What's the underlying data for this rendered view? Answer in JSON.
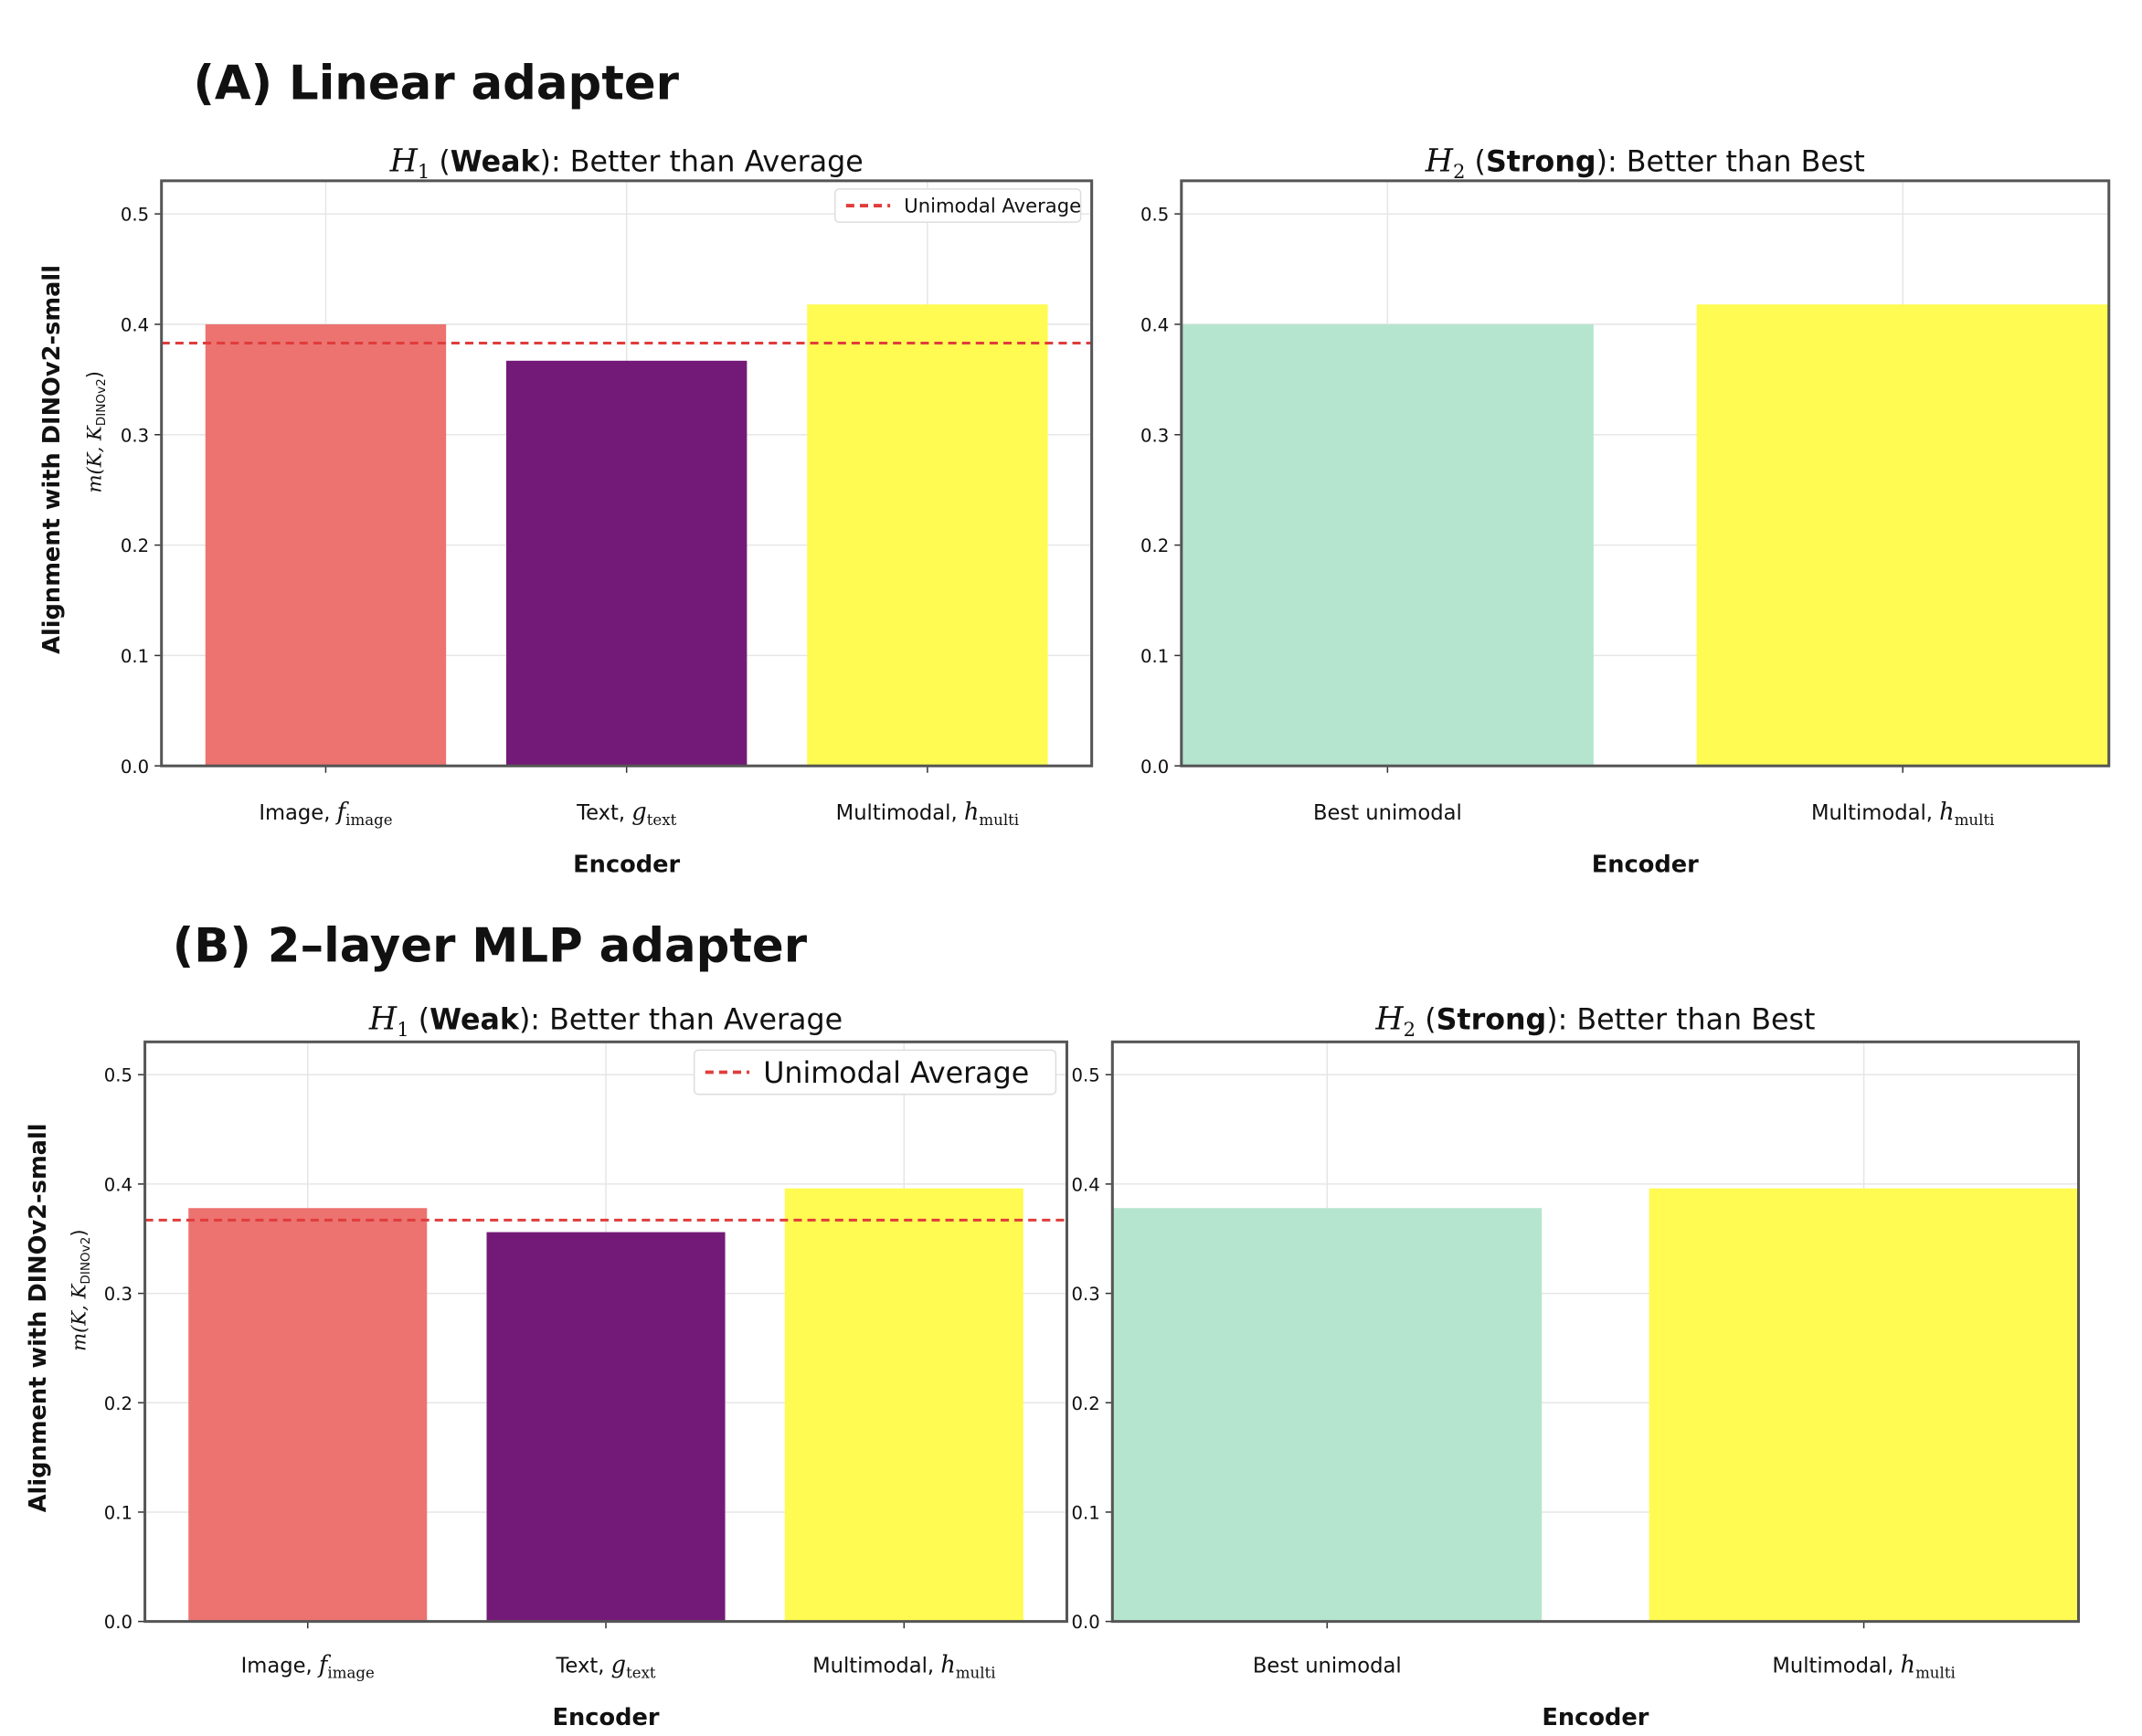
{
  "colors": {
    "image": "#ec7370",
    "text": "#731a78",
    "multi": "#fffb52",
    "best": "#b6e5cf",
    "avg": "#e03c3c",
    "grid": "#e6e6e6",
    "frame": "#555555"
  },
  "chart_data": [
    {
      "section_title": "(A) Linear adapter",
      "panels": [
        {
          "type": "bar",
          "title_math": "H",
          "title_sub": "1",
          "title_bold": "Weak",
          "title_rest": "): Better than Average",
          "categories": [
            {
              "label": "Image, ",
              "math": "f",
              "sub": "image"
            },
            {
              "label": "Text, ",
              "math": "g",
              "sub": "text"
            },
            {
              "label": "Multimodal, ",
              "math": "h",
              "sub": "multi"
            }
          ],
          "values": [
            0.4,
            0.367,
            0.418
          ],
          "bar_colors": [
            "image",
            "text",
            "multi"
          ],
          "hline": {
            "value": 0.383,
            "label": "Unimodal Average"
          },
          "legend": "top-right",
          "xlabel": "Encoder",
          "ylabel": "Alignment with DINOv2-small",
          "ylabel2": "m(K, K",
          "ylabel2_sub": "DINOv2",
          "ylim": [
            0,
            0.53
          ],
          "yticks": [
            "0.0",
            "0.1",
            "0.2",
            "0.3",
            "0.4",
            "0.5"
          ],
          "grid": true
        },
        {
          "type": "bar",
          "title_math": "H",
          "title_sub": "2",
          "title_bold": "Strong",
          "title_rest": "): Better than Best",
          "categories": [
            {
              "label": "Best unimodal"
            },
            {
              "label": "Multimodal, ",
              "math": "h",
              "sub": "multi"
            }
          ],
          "values": [
            0.4,
            0.418
          ],
          "bar_colors": [
            "best",
            "multi"
          ],
          "xlabel": "Encoder",
          "ylim": [
            0,
            0.53
          ],
          "yticks": [
            "0.0",
            "0.1",
            "0.2",
            "0.3",
            "0.4",
            "0.5"
          ],
          "grid": true
        }
      ]
    },
    {
      "section_title": "(B) 2–layer MLP adapter",
      "panels": [
        {
          "type": "bar",
          "title_math": "H",
          "title_sub": "1",
          "title_bold": "Weak",
          "title_rest": "): Better than Average",
          "categories": [
            {
              "label": "Image, ",
              "math": "f",
              "sub": "image"
            },
            {
              "label": "Text, ",
              "math": "g",
              "sub": "text"
            },
            {
              "label": "Multimodal, ",
              "math": "h",
              "sub": "multi"
            }
          ],
          "values": [
            0.378,
            0.356,
            0.396
          ],
          "bar_colors": [
            "image",
            "text",
            "multi"
          ],
          "hline": {
            "value": 0.367,
            "label": "Unimodal Average"
          },
          "legend": "top-right",
          "xlabel": "Encoder",
          "ylabel": "Alignment with DINOv2-small",
          "ylabel2": "m(K, K",
          "ylabel2_sub": "DINOv2",
          "ylim": [
            0,
            0.53
          ],
          "yticks": [
            "0.0",
            "0.1",
            "0.2",
            "0.3",
            "0.4",
            "0.5"
          ],
          "grid": true
        },
        {
          "type": "bar",
          "title_math": "H",
          "title_sub": "2",
          "title_bold": "Strong",
          "title_rest": "): Better than Best",
          "categories": [
            {
              "label": "Best unimodal"
            },
            {
              "label": "Multimodal, ",
              "math": "h",
              "sub": "multi"
            }
          ],
          "values": [
            0.378,
            0.396
          ],
          "bar_colors": [
            "best",
            "multi"
          ],
          "xlabel": "Encoder",
          "ylim": [
            0,
            0.53
          ],
          "yticks": [
            "0.0",
            "0.1",
            "0.2",
            "0.3",
            "0.4",
            "0.5"
          ],
          "grid": true
        }
      ]
    }
  ]
}
